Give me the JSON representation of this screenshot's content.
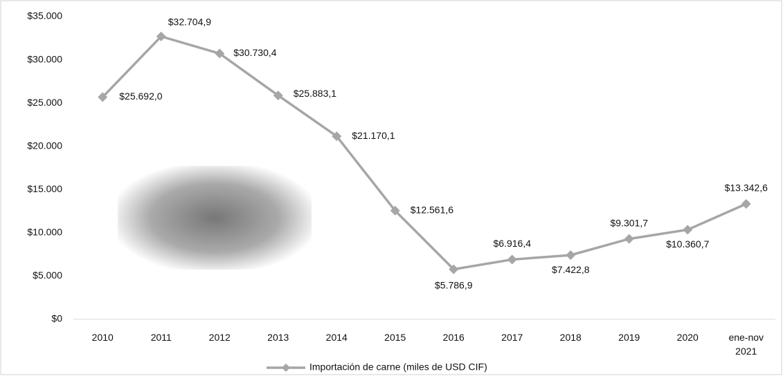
{
  "chart_data": {
    "type": "line",
    "categories": [
      "2010",
      "2011",
      "2012",
      "2013",
      "2014",
      "2015",
      "2016",
      "2017",
      "2018",
      "2019",
      "2020",
      "ene-nov 2021"
    ],
    "series": [
      {
        "name": "Importación de carne (miles de USD CIF)",
        "color": "#a6a6a6",
        "values": [
          25692.0,
          32704.9,
          30730.4,
          25883.1,
          21170.1,
          12561.6,
          5786.9,
          6916.4,
          7422.8,
          9301.7,
          10360.7,
          13342.6
        ],
        "value_labels": [
          "$25.692,0",
          "$32.704,9",
          "$30.730,4",
          "$25.883,1",
          "$21.170,1",
          "$12.561,6",
          "$5.786,9",
          "$6.916,4",
          "$7.422,8",
          "$9.301,7",
          "$10.360,7",
          "$13.342,6"
        ]
      }
    ],
    "ylim": [
      0,
      35000
    ],
    "yticks": [
      {
        "value": 0,
        "label": "$0"
      },
      {
        "value": 5000,
        "label": "$5.000"
      },
      {
        "value": 10000,
        "label": "$10.000"
      },
      {
        "value": 15000,
        "label": "$15.000"
      },
      {
        "value": 20000,
        "label": "$20.000"
      },
      {
        "value": 25000,
        "label": "$25.000"
      },
      {
        "value": 30000,
        "label": "$30.000"
      },
      {
        "value": 35000,
        "label": "$35.000"
      }
    ],
    "grid": false,
    "legend": "bottom"
  }
}
